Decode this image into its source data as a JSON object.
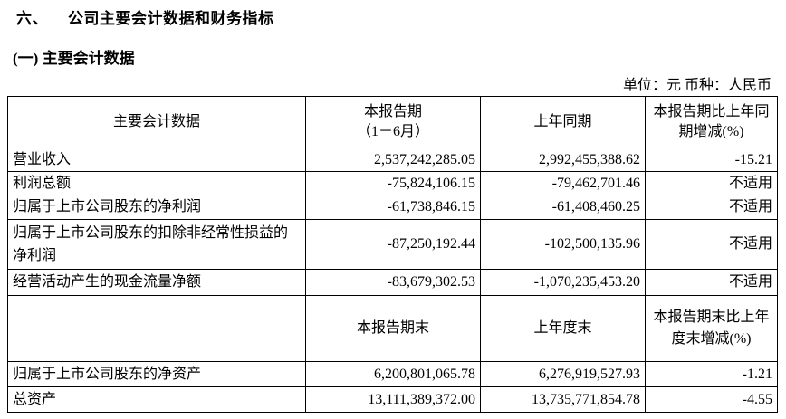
{
  "section_title": {
    "number": "六、",
    "text": "公司主要会计数据和财务指标"
  },
  "subsection_title": "(一) 主要会计数据",
  "unit_line": "单位：元   币种：人民币",
  "table1": {
    "headers": [
      "主要会计数据",
      "本报告期\n（1－6月）",
      "上年同期",
      "本报告期比上年同期增减(%)"
    ],
    "rows": [
      {
        "label": "营业收入",
        "current": "2,537,242,285.05",
        "prior": "2,992,455,388.62",
        "change": "-15.21"
      },
      {
        "label": "利润总额",
        "current": "-75,824,106.15",
        "prior": "-79,462,701.46",
        "change": "不适用"
      },
      {
        "label": "归属于上市公司股东的净利润",
        "current": "-61,738,846.15",
        "prior": "-61,408,460.25",
        "change": "不适用"
      },
      {
        "label": "归属于上市公司股东的扣除非经常性损益的净利润",
        "current": "-87,250,192.44",
        "prior": "-102,500,135.96",
        "change": "不适用"
      },
      {
        "label": "经营活动产生的现金流量净额",
        "current": "-83,679,302.53",
        "prior": "-1,070,235,453.20",
        "change": "不适用"
      }
    ]
  },
  "table2": {
    "headers": [
      "",
      "本报告期末",
      "上年度末",
      "本报告期末比上年度末增减(%)"
    ],
    "rows": [
      {
        "label": "归属于上市公司股东的净资产",
        "current": "6,200,801,065.78",
        "prior": "6,276,919,527.93",
        "change": "-1.21"
      },
      {
        "label": "总资产",
        "current": "13,111,389,372.00",
        "prior": "13,735,771,854.78",
        "change": "-4.55"
      }
    ]
  }
}
